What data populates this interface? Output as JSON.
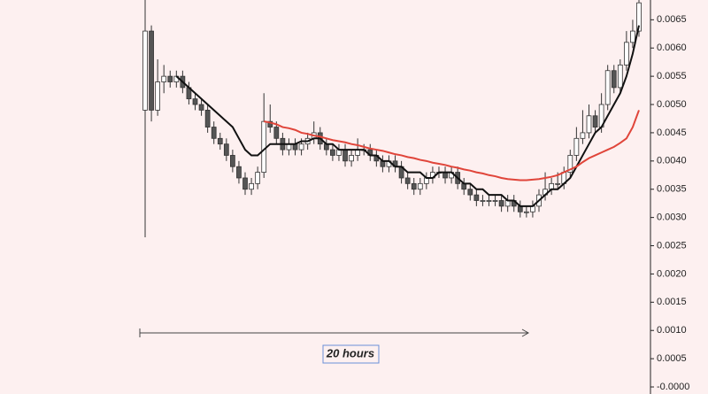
{
  "chart_data": {
    "type": "candlestick",
    "annotation": "20 hours",
    "up_color": "#ffffff",
    "down_color": "#555555",
    "wick_color": "#333333",
    "ylim": [
      -0.000125,
      0.00685
    ],
    "yticks": [
      {
        "value": 0,
        "label": "-0.0000"
      },
      0.0005,
      {
        "value": 0.001,
        "label": "0.0010"
      },
      0.0015,
      {
        "value": 0.002,
        "label": "0.0020"
      },
      0.0025,
      {
        "value": 0.003,
        "label": "0.0030"
      },
      0.0035,
      {
        "value": 0.004,
        "label": "0.0040"
      },
      0.0045,
      {
        "value": 0.005,
        "label": "0.0050"
      },
      0.0055,
      {
        "value": 0.006,
        "label": "0.0060"
      },
      0.0065
    ],
    "open": [
      0.0049,
      0.0063,
      0.0049,
      0.0054,
      0.0055,
      0.0054,
      0.0055,
      0.0053,
      0.0051,
      0.005,
      0.0049,
      0.0046,
      0.0044,
      0.0043,
      0.0041,
      0.0039,
      0.0037,
      0.0035,
      0.0036,
      0.0038,
      0.0047,
      0.0046,
      0.0044,
      0.0042,
      0.0043,
      0.0042,
      0.0043,
      0.0044,
      0.0045,
      0.0043,
      0.0042,
      0.0041,
      0.0042,
      0.004,
      0.0041,
      0.0042,
      0.0042,
      0.0041,
      0.004,
      0.0039,
      0.004,
      0.0039,
      0.0037,
      0.0036,
      0.0035,
      0.0036,
      0.0037,
      0.0038,
      0.0038,
      0.0037,
      0.0038,
      0.0036,
      0.0035,
      0.0034,
      0.0033,
      0.0033,
      0.0033,
      0.0033,
      0.0032,
      0.0033,
      0.0032,
      0.0031,
      0.0031,
      0.0032,
      0.0034,
      0.0035,
      0.0036,
      0.0036,
      0.0038,
      0.0041,
      0.0044,
      0.0045,
      0.0048,
      0.0046,
      0.005,
      0.0056,
      0.0053,
      0.0057,
      0.0061,
      0.0063
    ],
    "close": [
      0.0063,
      0.0049,
      0.0054,
      0.0055,
      0.0054,
      0.0055,
      0.0053,
      0.0051,
      0.005,
      0.0049,
      0.0046,
      0.0044,
      0.0043,
      0.0041,
      0.0039,
      0.0037,
      0.0035,
      0.0036,
      0.0038,
      0.0047,
      0.0046,
      0.0044,
      0.0042,
      0.0043,
      0.0042,
      0.0043,
      0.0044,
      0.0045,
      0.0043,
      0.0042,
      0.0041,
      0.0042,
      0.004,
      0.0041,
      0.0042,
      0.0042,
      0.0041,
      0.004,
      0.0039,
      0.004,
      0.0039,
      0.0037,
      0.0036,
      0.0035,
      0.0036,
      0.0037,
      0.0038,
      0.0038,
      0.0037,
      0.0038,
      0.0036,
      0.0035,
      0.0034,
      0.0033,
      0.0033,
      0.0033,
      0.0033,
      0.0032,
      0.0033,
      0.0032,
      0.0031,
      0.0031,
      0.0032,
      0.0034,
      0.0035,
      0.0036,
      0.0036,
      0.0038,
      0.0041,
      0.0044,
      0.0045,
      0.0048,
      0.0046,
      0.005,
      0.0056,
      0.0053,
      0.0057,
      0.0061,
      0.0063,
      0.0068
    ],
    "high": [
      0.0069,
      0.0064,
      0.0058,
      0.0057,
      0.0056,
      0.0056,
      0.0056,
      0.0054,
      0.0052,
      0.0051,
      0.005,
      0.0047,
      0.0045,
      0.0044,
      0.0042,
      0.004,
      0.0038,
      0.0037,
      0.0039,
      0.0052,
      0.005,
      0.0047,
      0.0045,
      0.0044,
      0.0044,
      0.0044,
      0.0045,
      0.0047,
      0.0046,
      0.0044,
      0.0043,
      0.0043,
      0.0043,
      0.0042,
      0.0044,
      0.0043,
      0.0043,
      0.0042,
      0.0041,
      0.0041,
      0.0041,
      0.004,
      0.0038,
      0.0037,
      0.0037,
      0.0038,
      0.0039,
      0.0039,
      0.0039,
      0.0039,
      0.0039,
      0.0037,
      0.0036,
      0.0035,
      0.0034,
      0.0034,
      0.0034,
      0.0034,
      0.0034,
      0.0034,
      0.0033,
      0.0032,
      0.0033,
      0.0035,
      0.0038,
      0.0037,
      0.0038,
      0.0039,
      0.0042,
      0.0046,
      0.0049,
      0.005,
      0.0049,
      0.0052,
      0.0057,
      0.0057,
      0.0058,
      0.0063,
      0.0065,
      0.007
    ],
    "low": [
      0.00265,
      0.0047,
      0.0048,
      0.0052,
      0.0053,
      0.0053,
      0.0052,
      0.005,
      0.0049,
      0.0048,
      0.0045,
      0.0043,
      0.0042,
      0.004,
      0.0038,
      0.0036,
      0.0034,
      0.0034,
      0.0035,
      0.0037,
      0.0045,
      0.0043,
      0.0041,
      0.0041,
      0.0041,
      0.0041,
      0.0042,
      0.0043,
      0.0042,
      0.0041,
      0.004,
      0.004,
      0.0039,
      0.0039,
      0.004,
      0.0041,
      0.004,
      0.0039,
      0.0038,
      0.0038,
      0.0038,
      0.0036,
      0.0035,
      0.0034,
      0.0034,
      0.0035,
      0.0036,
      0.0037,
      0.0036,
      0.0036,
      0.0035,
      0.0034,
      0.0033,
      0.0032,
      0.0032,
      0.0032,
      0.0032,
      0.0031,
      0.0031,
      0.0031,
      0.003,
      0.003,
      0.003,
      0.0031,
      0.0033,
      0.0034,
      0.0035,
      0.0035,
      0.0037,
      0.004,
      0.0043,
      0.0044,
      0.0045,
      0.0045,
      0.0049,
      0.0052,
      0.0052,
      0.0056,
      0.006,
      0.0062
    ],
    "lines": [
      {
        "color": "#111111",
        "values": [
          null,
          null,
          null,
          null,
          null,
          0.0055,
          0.0054,
          0.0053,
          0.0052,
          0.0051,
          0.005,
          0.0049,
          0.0048,
          0.0047,
          0.0046,
          0.0044,
          0.0042,
          0.0041,
          0.0041,
          0.0042,
          0.0043,
          0.0043,
          0.0043,
          0.0043,
          0.0043,
          0.00435,
          0.00435,
          0.0044,
          0.0044,
          0.0043,
          0.0043,
          0.0042,
          0.0042,
          0.0042,
          0.0042,
          0.0042,
          0.0041,
          0.0041,
          0.004,
          0.004,
          0.0039,
          0.0039,
          0.0038,
          0.0038,
          0.0038,
          0.0037,
          0.0037,
          0.0038,
          0.0038,
          0.0038,
          0.0037,
          0.0036,
          0.0036,
          0.0035,
          0.0035,
          0.0034,
          0.0034,
          0.0034,
          0.0033,
          0.0033,
          0.0032,
          0.0032,
          0.0032,
          0.0033,
          0.0034,
          0.0035,
          0.0035,
          0.0036,
          0.0037,
          0.0039,
          0.0041,
          0.0043,
          0.0045,
          0.0046,
          0.0048,
          0.005,
          0.0052,
          0.0055,
          0.0059,
          0.0064
        ]
      },
      {
        "color": "#e0453a",
        "values": [
          null,
          null,
          null,
          null,
          null,
          null,
          null,
          null,
          null,
          null,
          null,
          null,
          null,
          null,
          null,
          null,
          null,
          null,
          null,
          0.0047,
          0.00468,
          0.00465,
          0.0046,
          0.00458,
          0.00455,
          0.0045,
          0.00448,
          0.00445,
          0.00443,
          0.0044,
          0.00437,
          0.00435,
          0.00433,
          0.0043,
          0.00428,
          0.00425,
          0.00422,
          0.0042,
          0.00418,
          0.00415,
          0.00412,
          0.0041,
          0.00407,
          0.00405,
          0.00402,
          0.004,
          0.00397,
          0.00395,
          0.00393,
          0.0039,
          0.00388,
          0.00385,
          0.00383,
          0.0038,
          0.00378,
          0.00375,
          0.00373,
          0.0037,
          0.00368,
          0.00367,
          0.00366,
          0.00366,
          0.00367,
          0.00368,
          0.0037,
          0.00372,
          0.00375,
          0.0038,
          0.00385,
          0.0039,
          0.00398,
          0.00405,
          0.0041,
          0.00415,
          0.0042,
          0.00425,
          0.00432,
          0.0044,
          0.0046,
          0.0049
        ]
      }
    ]
  }
}
